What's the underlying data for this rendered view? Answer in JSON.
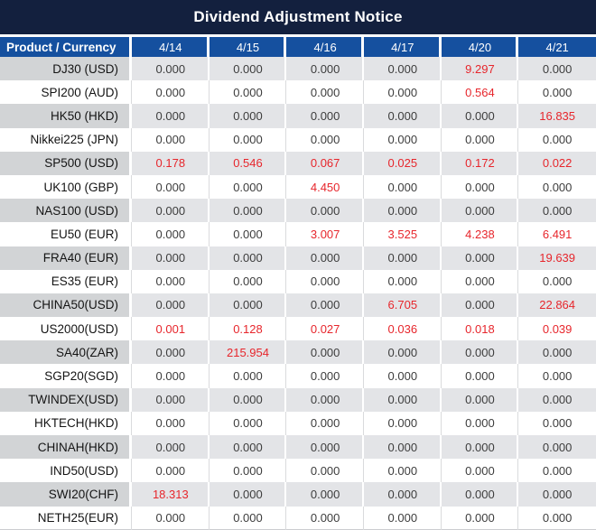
{
  "title": "Dividend Adjustment Notice",
  "colors": {
    "title_bar_bg": "#13203e",
    "header_row_bg": "#15509f",
    "header_text": "#ffffff",
    "shaded_product_cell_bg": "#d2d4d6",
    "shaded_value_cell_bg": "#e3e4e7",
    "value_text": "#3d3d3d",
    "product_text": "#141414",
    "red_value_text": "#e7262c"
  },
  "table": {
    "columns": [
      "Product / Currency",
      "4/14",
      "4/15",
      "4/16",
      "4/17",
      "4/20",
      "4/21"
    ],
    "rows": [
      {
        "product": "DJ30 (USD)",
        "values": [
          "0.000",
          "0.000",
          "0.000",
          "0.000",
          "9.297",
          "0.000"
        ],
        "red": [
          4
        ]
      },
      {
        "product": "SPI200 (AUD)",
        "values": [
          "0.000",
          "0.000",
          "0.000",
          "0.000",
          "0.564",
          "0.000"
        ],
        "red": [
          4
        ]
      },
      {
        "product": "HK50 (HKD)",
        "values": [
          "0.000",
          "0.000",
          "0.000",
          "0.000",
          "0.000",
          "16.835"
        ],
        "red": [
          5
        ]
      },
      {
        "product": "Nikkei225 (JPN)",
        "values": [
          "0.000",
          "0.000",
          "0.000",
          "0.000",
          "0.000",
          "0.000"
        ],
        "red": []
      },
      {
        "product": "SP500 (USD)",
        "values": [
          "0.178",
          "0.546",
          "0.067",
          "0.025",
          "0.172",
          "0.022"
        ],
        "red": [
          0,
          1,
          2,
          3,
          4,
          5
        ]
      },
      {
        "product": "UK100 (GBP)",
        "values": [
          "0.000",
          "0.000",
          "4.450",
          "0.000",
          "0.000",
          "0.000"
        ],
        "red": [
          2
        ]
      },
      {
        "product": "NAS100 (USD)",
        "values": [
          "0.000",
          "0.000",
          "0.000",
          "0.000",
          "0.000",
          "0.000"
        ],
        "red": []
      },
      {
        "product": "EU50 (EUR)",
        "values": [
          "0.000",
          "0.000",
          "3.007",
          "3.525",
          "4.238",
          "6.491"
        ],
        "red": [
          2,
          3,
          4,
          5
        ]
      },
      {
        "product": "FRA40 (EUR)",
        "values": [
          "0.000",
          "0.000",
          "0.000",
          "0.000",
          "0.000",
          "19.639"
        ],
        "red": [
          5
        ]
      },
      {
        "product": "ES35 (EUR)",
        "values": [
          "0.000",
          "0.000",
          "0.000",
          "0.000",
          "0.000",
          "0.000"
        ],
        "red": []
      },
      {
        "product": "CHINA50(USD)",
        "values": [
          "0.000",
          "0.000",
          "0.000",
          "6.705",
          "0.000",
          "22.864"
        ],
        "red": [
          3,
          5
        ]
      },
      {
        "product": "US2000(USD)",
        "values": [
          "0.001",
          "0.128",
          "0.027",
          "0.036",
          "0.018",
          "0.039"
        ],
        "red": [
          0,
          1,
          2,
          3,
          4,
          5
        ]
      },
      {
        "product": "SA40(ZAR)",
        "values": [
          "0.000",
          "215.954",
          "0.000",
          "0.000",
          "0.000",
          "0.000"
        ],
        "red": [
          1
        ]
      },
      {
        "product": "SGP20(SGD)",
        "values": [
          "0.000",
          "0.000",
          "0.000",
          "0.000",
          "0.000",
          "0.000"
        ],
        "red": []
      },
      {
        "product": "TWINDEX(USD)",
        "values": [
          "0.000",
          "0.000",
          "0.000",
          "0.000",
          "0.000",
          "0.000"
        ],
        "red": []
      },
      {
        "product": "HKTECH(HKD)",
        "values": [
          "0.000",
          "0.000",
          "0.000",
          "0.000",
          "0.000",
          "0.000"
        ],
        "red": []
      },
      {
        "product": "CHINAH(HKD)",
        "values": [
          "0.000",
          "0.000",
          "0.000",
          "0.000",
          "0.000",
          "0.000"
        ],
        "red": []
      },
      {
        "product": "IND50(USD)",
        "values": [
          "0.000",
          "0.000",
          "0.000",
          "0.000",
          "0.000",
          "0.000"
        ],
        "red": []
      },
      {
        "product": "SWI20(CHF)",
        "values": [
          "18.313",
          "0.000",
          "0.000",
          "0.000",
          "0.000",
          "0.000"
        ],
        "red": [
          0
        ]
      },
      {
        "product": "NETH25(EUR)",
        "values": [
          "0.000",
          "0.000",
          "0.000",
          "0.000",
          "0.000",
          "0.000"
        ],
        "red": []
      }
    ]
  }
}
